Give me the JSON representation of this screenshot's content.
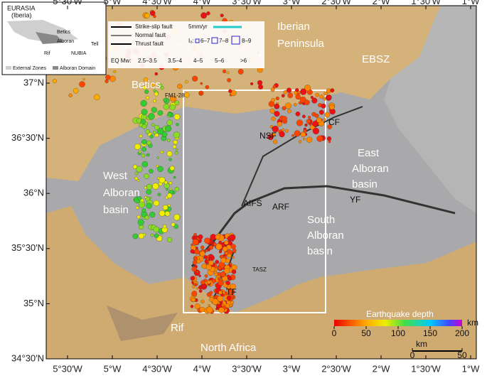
{
  "map": {
    "lon_ticks": [
      {
        "value": -5.5,
        "label": "5°30′W"
      },
      {
        "value": -5,
        "label": "5°W"
      },
      {
        "value": -4.5,
        "label": "4°30′W"
      },
      {
        "value": -4,
        "label": "4°W"
      },
      {
        "value": -3.5,
        "label": "3°30′W"
      },
      {
        "value": -3,
        "label": "3°W"
      },
      {
        "value": -2.5,
        "label": "2°30′W"
      },
      {
        "value": -2,
        "label": "2°W"
      },
      {
        "value": -1.5,
        "label": "1°30′W"
      },
      {
        "value": -1,
        "label": "1°W"
      }
    ],
    "lat_ticks": [
      {
        "value": 37,
        "label": "37°N"
      },
      {
        "value": 36.5,
        "label": "36°30′N"
      },
      {
        "value": 36,
        "label": "36°N"
      },
      {
        "value": 35.5,
        "label": "35°30′N"
      },
      {
        "value": 35,
        "label": "35°N"
      },
      {
        "value": 34.5,
        "label": "34°30′N"
      }
    ],
    "places": {
      "iberia": "Iberian",
      "peninsula": "Peninsula",
      "betics": "Betics",
      "west1": "West",
      "west2": "Alboran",
      "west3": "basin",
      "east1": "East",
      "east2": "Alboran",
      "east3": "basin",
      "south1": "South",
      "south2": "Alboran",
      "south3": "basin",
      "rif": "Rif",
      "africa": "North Africa",
      "ebsz": "EBSZ",
      "nsf": "NSF",
      "cf": "CF",
      "aifs": "AIFS",
      "arf": "ARF",
      "yf": "YF",
      "tf": "TF",
      "tasz": "TASZ",
      "fm": "FM1-28"
    },
    "legend": {
      "strike": "Strike-slip fault",
      "normal": "Normal fault",
      "thrust": "Thrust fault",
      "gps": "5mm/yr",
      "i0": "I₀:",
      "i1": "6–7",
      "i2": "7–8",
      "i3": "8–9",
      "eq": "EQ Mw:",
      "m1": "2.5–3.5",
      "m2": "3.5–4",
      "m3": "4–5",
      "m4": "5–6",
      "m5": ">6"
    },
    "inset": {
      "eurasia": "EURASIA",
      "iberia": "(Iberia)",
      "betics": "Betics",
      "alboran": "Alboran",
      "rif": "Rif",
      "nubia": "NUBIA",
      "tell": "Tell",
      "ext": "External Zones",
      "dom": "Alboran Domain"
    },
    "colorbar": {
      "title": "Earthquake depth",
      "unit": "km",
      "range": [
        0,
        200
      ],
      "ticks": [
        0,
        50,
        100,
        150,
        200
      ]
    },
    "scalebar": {
      "unit": "km",
      "ticks": [
        0,
        50
      ]
    }
  }
}
